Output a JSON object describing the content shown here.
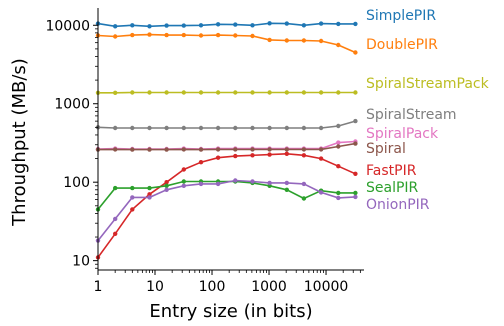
{
  "chart_data": {
    "type": "line",
    "title": "",
    "xlabel": "Entry size (in bits)",
    "ylabel": "Throughput (MB/s)",
    "xscale": "log",
    "yscale": "log",
    "xlim": [
      1,
      46340
    ],
    "ylim": [
      7.6,
      16600
    ],
    "grid": false,
    "legend": "inline labels at right end of each line",
    "x": [
      1,
      2,
      4,
      8,
      16,
      32,
      64,
      128,
      256,
      512,
      1024,
      2048,
      4096,
      8192,
      16384,
      32768
    ],
    "xticks": [
      {
        "value": 1,
        "label": "1"
      },
      {
        "value": 10,
        "label": "10"
      },
      {
        "value": 100,
        "label": "100"
      },
      {
        "value": 1000,
        "label": "1000"
      },
      {
        "value": 10000,
        "label": "10000"
      }
    ],
    "yticks": [
      {
        "value": 10,
        "label": "10"
      },
      {
        "value": 100,
        "label": "100"
      },
      {
        "value": 1000,
        "label": "1000"
      },
      {
        "value": 10000,
        "label": "10000"
      }
    ],
    "series": [
      {
        "name": "SimplePIR",
        "color": "#1f77b4",
        "values": [
          10500,
          9700,
          10000,
          9700,
          9900,
          9900,
          10000,
          10300,
          10200,
          10000,
          10600,
          10500,
          10000,
          10500,
          10400,
          10400
        ]
      },
      {
        "name": "DoublePIR",
        "color": "#ff7f0e",
        "values": [
          7400,
          7200,
          7500,
          7600,
          7500,
          7500,
          7400,
          7500,
          7400,
          7300,
          6500,
          6400,
          6400,
          6300,
          5600,
          4500
        ]
      },
      {
        "name": "SpiralStreamPack",
        "color": "#bcbd22",
        "values": [
          1380,
          1380,
          1390,
          1390,
          1390,
          1390,
          1390,
          1390,
          1390,
          1390,
          1390,
          1390,
          1390,
          1390,
          1390,
          1390
        ]
      },
      {
        "name": "SpiralStream",
        "color": "#7f7f7f",
        "values": [
          500,
          490,
          490,
          490,
          490,
          490,
          490,
          490,
          490,
          490,
          490,
          490,
          490,
          490,
          520,
          600
        ]
      },
      {
        "name": "SpiralPack",
        "color": "#e377c2",
        "values": [
          265,
          268,
          265,
          265,
          265,
          268,
          265,
          268,
          268,
          268,
          268,
          268,
          268,
          268,
          320,
          330
        ]
      },
      {
        "name": "Spiral",
        "color": "#8c564b",
        "values": [
          260,
          262,
          260,
          260,
          260,
          262,
          260,
          262,
          262,
          262,
          262,
          262,
          262,
          262,
          285,
          310
        ]
      },
      {
        "name": "FastPIR",
        "color": "#d62728",
        "values": [
          11,
          22,
          45,
          70,
          100,
          145,
          180,
          205,
          215,
          220,
          225,
          230,
          220,
          200,
          160,
          128
        ]
      },
      {
        "name": "SealPIR",
        "color": "#2ca02c",
        "values": [
          45,
          84,
          84,
          84,
          90,
          102,
          102,
          102,
          102,
          98,
          90,
          80,
          62,
          78,
          73,
          73
        ]
      },
      {
        "name": "OnionPIR",
        "color": "#9467bd",
        "values": [
          18,
          34,
          64,
          64,
          80,
          90,
          95,
          95,
          105,
          102,
          98,
          98,
          95,
          74,
          63,
          65
        ]
      }
    ]
  }
}
